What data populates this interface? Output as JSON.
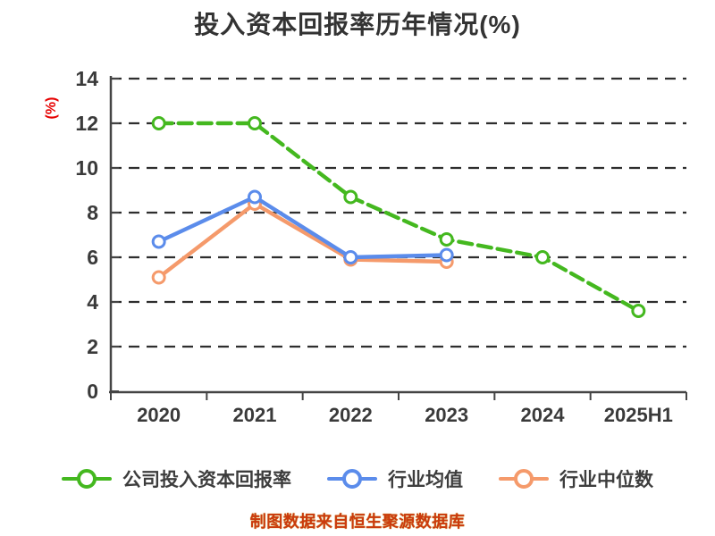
{
  "chart_data": {
    "type": "line",
    "title": "投入资本回报率历年情况(%)",
    "ylabel": "(%)",
    "ylabel_color": "#e60000",
    "categories": [
      "2020",
      "2021",
      "2022",
      "2023",
      "2024",
      "2025H1"
    ],
    "ylim": [
      0,
      14
    ],
    "yticks": [
      0,
      2,
      4,
      6,
      8,
      10,
      12,
      14
    ],
    "grid": {
      "orientation": "horizontal",
      "style": "dashed",
      "color": "#2e2e2e"
    },
    "axis_color": "#444444",
    "tick_label_color": "#3a3a3a",
    "legend_position": "bottom",
    "series": [
      {
        "name": "公司投入资本回报率",
        "color": "#44b81f",
        "line_style": "dashed",
        "marker": "circle-white-fill",
        "values": [
          12.0,
          12.0,
          8.7,
          6.8,
          6.0,
          3.6
        ]
      },
      {
        "name": "行业均值",
        "color": "#5b8ceb",
        "line_style": "solid",
        "marker": "circle-white-fill",
        "values": [
          6.7,
          8.7,
          6.0,
          6.1,
          null,
          null
        ]
      },
      {
        "name": "行业中位数",
        "color": "#f59a6b",
        "line_style": "solid",
        "marker": "circle-white-fill",
        "values": [
          5.1,
          8.4,
          5.9,
          5.8,
          null,
          null
        ]
      }
    ]
  },
  "caption": {
    "text": "制图数据来自恒生聚源数据库",
    "color": "#cb3a0e",
    "outline_color": "#c09000"
  }
}
